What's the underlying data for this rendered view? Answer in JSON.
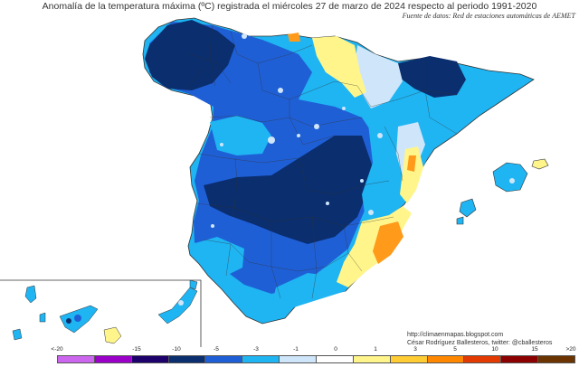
{
  "title": "Anomalía de la temperatura máxima (ºC) registrada el miércoles 27 de marzo de 2024 respecto al periodo 1991-2020",
  "source": "Fuente de datos: Red de estaciones automáticas de AEMET",
  "credits": {
    "blog": "http://climaenmapas.blogspot.com",
    "author": "César Rodríguez Ballesteros, twitter: @cballesteros"
  },
  "legend": {
    "labels": [
      "<-20",
      "-15",
      "-10",
      "-5",
      "-3",
      "-1",
      "0",
      "1",
      "3",
      "5",
      "10",
      "15",
      ">20"
    ],
    "colors": [
      "#cc66ee",
      "#9a00c8",
      "#1e006b",
      "#0a2e6e",
      "#1f5fd6",
      "#1fb4f2",
      "#cfe6fa",
      "#ffffff",
      "#fff58a",
      "#ffcc33",
      "#ff8800",
      "#e23a00",
      "#8b0000",
      "#6b3300"
    ]
  },
  "colors": {
    "deep_blue": "#0a2e6e",
    "mid_blue": "#1f5fd6",
    "light_blue": "#1fb4f2",
    "pale_blue": "#cfe6fa",
    "yellow": "#fff58a",
    "orange": "#ff9a1a"
  }
}
